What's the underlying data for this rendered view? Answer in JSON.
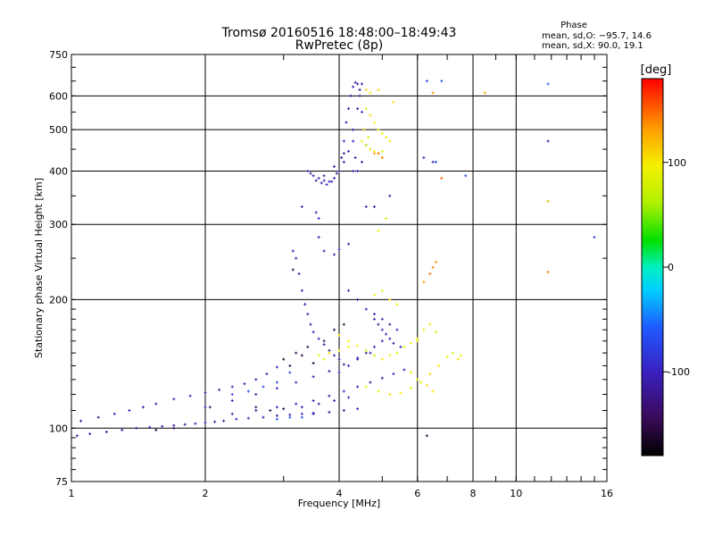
{
  "chart_data": {
    "type": "scatter",
    "title": "Tromsø 20160516 18:48:00–18:49:43",
    "subtitle": "RwPretec (8p)",
    "xlabel": "Frequency [MHz]",
    "ylabel": "Stationary phase Virtual Height [km]",
    "x_scale": "log",
    "y_scale": "log",
    "xlim": [
      1,
      16
    ],
    "ylim": [
      75,
      750
    ],
    "x_ticks": [
      1,
      2,
      4,
      6,
      8,
      10,
      16
    ],
    "x_tick_labels": [
      "1",
      "2",
      "4",
      "6",
      "8",
      "10",
      "16"
    ],
    "y_ticks": [
      75,
      100,
      200,
      300,
      400,
      500,
      600,
      750
    ],
    "y_tick_labels": [
      "75",
      "100",
      "200",
      "300",
      "400",
      "500",
      "600",
      "750"
    ],
    "grid": true,
    "stats": {
      "heading": "Phase",
      "line_o": "mean, sd,O: −95.7, 14.6",
      "line_x": "mean, sd,X: 90.0, 19.1"
    },
    "colorbar": {
      "label": "[deg]",
      "range": [
        -180,
        180
      ],
      "ticks": [
        100,
        0,
        -100
      ],
      "tick_labels": [
        "100",
        "0",
        "-100"
      ]
    },
    "series": [
      {
        "color_value_deg": -110,
        "points": [
          [
            1.03,
            96
          ],
          [
            1.1,
            97
          ],
          [
            1.2,
            98
          ],
          [
            1.3,
            99
          ],
          [
            1.4,
            100
          ],
          [
            1.5,
            100.5
          ],
          [
            1.6,
            101
          ],
          [
            1.7,
            101.5
          ],
          [
            1.8,
            102
          ],
          [
            1.9,
            102.5
          ],
          [
            2.0,
            103
          ],
          [
            2.1,
            103.5
          ],
          [
            2.2,
            104
          ],
          [
            2.35,
            105
          ],
          [
            2.5,
            105.5
          ],
          [
            2.7,
            106
          ],
          [
            2.9,
            107
          ],
          [
            3.1,
            107.5
          ],
          [
            3.3,
            108
          ],
          [
            3.5,
            108.5
          ],
          [
            1.05,
            104
          ],
          [
            1.15,
            106
          ],
          [
            1.25,
            108
          ],
          [
            1.35,
            110
          ],
          [
            1.45,
            112
          ],
          [
            1.55,
            114
          ],
          [
            1.7,
            117
          ],
          [
            1.85,
            119
          ],
          [
            2.0,
            121
          ],
          [
            2.15,
            123
          ],
          [
            2.3,
            125
          ],
          [
            2.45,
            127
          ],
          [
            2.6,
            130
          ],
          [
            2.75,
            134
          ],
          [
            2.9,
            139
          ],
          [
            2.0,
            112
          ],
          [
            2.3,
            116
          ],
          [
            2.6,
            120
          ],
          [
            2.9,
            124
          ],
          [
            3.2,
            128
          ],
          [
            3.5,
            132
          ],
          [
            3.8,
            136
          ],
          [
            4.1,
            141
          ],
          [
            4.4,
            146
          ],
          [
            4.7,
            150
          ],
          [
            2.3,
            108
          ],
          [
            2.6,
            110
          ],
          [
            2.9,
            112
          ],
          [
            3.2,
            114
          ],
          [
            3.5,
            116
          ],
          [
            3.8,
            119
          ],
          [
            4.1,
            122
          ],
          [
            4.4,
            125
          ],
          [
            4.7,
            128
          ],
          [
            5.0,
            131
          ],
          [
            5.3,
            134
          ],
          [
            5.6,
            137
          ],
          [
            3.3,
            112
          ],
          [
            3.6,
            114
          ],
          [
            3.9,
            116
          ],
          [
            4.2,
            118
          ],
          [
            3.5,
            108
          ],
          [
            3.8,
            109
          ],
          [
            4.1,
            110
          ],
          [
            4.4,
            111
          ],
          [
            3.15,
            260
          ],
          [
            3.2,
            250
          ],
          [
            3.25,
            230
          ],
          [
            3.3,
            210
          ],
          [
            3.35,
            195
          ],
          [
            3.4,
            185
          ],
          [
            3.45,
            175
          ],
          [
            3.5,
            168
          ],
          [
            3.6,
            162
          ],
          [
            3.7,
            157
          ],
          [
            3.8,
            152
          ],
          [
            3.9,
            148
          ],
          [
            4.0,
            145
          ],
          [
            3.5,
            390
          ],
          [
            3.6,
            385
          ],
          [
            3.7,
            380
          ],
          [
            3.8,
            378
          ],
          [
            3.9,
            385
          ],
          [
            4.0,
            400
          ],
          [
            4.05,
            430
          ],
          [
            4.1,
            470
          ],
          [
            4.15,
            520
          ],
          [
            4.2,
            560
          ],
          [
            4.25,
            600
          ],
          [
            4.3,
            630
          ],
          [
            4.35,
            645
          ],
          [
            4.4,
            640
          ],
          [
            4.45,
            600
          ],
          [
            4.5,
            550
          ],
          [
            4.55,
            500
          ],
          [
            4.6,
            460
          ],
          [
            4.5,
            420
          ],
          [
            4.4,
            400
          ],
          [
            3.4,
            400
          ],
          [
            3.45,
            395
          ],
          [
            3.55,
            380
          ],
          [
            3.65,
            375
          ],
          [
            3.75,
            372
          ],
          [
            3.85,
            378
          ],
          [
            3.95,
            395
          ],
          [
            4.1,
            420
          ],
          [
            4.2,
            445
          ],
          [
            4.3,
            500
          ],
          [
            4.4,
            560
          ],
          [
            4.45,
            620
          ],
          [
            4.5,
            640
          ],
          [
            3.7,
            390
          ],
          [
            3.9,
            410
          ],
          [
            4.1,
            440
          ],
          [
            4.3,
            470
          ],
          [
            4.35,
            430
          ],
          [
            4.8,
            180
          ],
          [
            4.9,
            175
          ],
          [
            5.0,
            170
          ],
          [
            5.1,
            166
          ],
          [
            5.2,
            162
          ],
          [
            5.3,
            158
          ],
          [
            5.5,
            155
          ],
          [
            4.0,
            135
          ],
          [
            4.2,
            140
          ],
          [
            4.4,
            145
          ],
          [
            4.6,
            150
          ],
          [
            4.8,
            155
          ],
          [
            5.0,
            160
          ],
          [
            4.2,
            210
          ],
          [
            4.4,
            200
          ],
          [
            4.6,
            190
          ],
          [
            4.8,
            185
          ],
          [
            5.0,
            180
          ],
          [
            5.2,
            175
          ],
          [
            5.4,
            170
          ],
          [
            3.3,
            330
          ],
          [
            3.6,
            280
          ],
          [
            3.7,
            260
          ],
          [
            3.9,
            255
          ],
          [
            4.0,
            262
          ],
          [
            4.2,
            270
          ],
          [
            3.55,
            320
          ],
          [
            3.6,
            310
          ],
          [
            4.3,
            400
          ],
          [
            4.6,
            330
          ],
          [
            5.2,
            350
          ],
          [
            4.8,
            330
          ],
          [
            6.2,
            430
          ],
          [
            6.5,
            420
          ],
          [
            11.8,
            470
          ],
          [
            11.8,
            340
          ]
        ]
      },
      {
        "color_value_deg": 95,
        "points": [
          [
            4.6,
            560
          ],
          [
            4.7,
            540
          ],
          [
            4.8,
            520
          ],
          [
            4.9,
            500
          ],
          [
            5.0,
            490
          ],
          [
            5.1,
            480
          ],
          [
            5.2,
            470
          ],
          [
            4.5,
            470
          ],
          [
            4.6,
            460
          ],
          [
            4.7,
            450
          ],
          [
            4.8,
            445
          ],
          [
            4.9,
            440
          ],
          [
            5.0,
            445
          ],
          [
            4.6,
            620
          ],
          [
            4.7,
            610
          ],
          [
            4.55,
            500
          ],
          [
            4.65,
            480
          ],
          [
            4.0,
            165
          ],
          [
            4.2,
            160
          ],
          [
            4.4,
            156
          ],
          [
            4.6,
            152
          ],
          [
            4.8,
            148
          ],
          [
            5.0,
            145
          ],
          [
            5.2,
            148
          ],
          [
            5.4,
            150
          ],
          [
            5.6,
            155
          ],
          [
            5.8,
            158
          ],
          [
            6.0,
            162
          ],
          [
            4.6,
            125
          ],
          [
            4.9,
            122
          ],
          [
            5.2,
            120
          ],
          [
            5.5,
            121
          ],
          [
            5.8,
            124
          ],
          [
            6.1,
            128
          ],
          [
            6.4,
            134
          ],
          [
            6.7,
            140
          ],
          [
            7.0,
            147
          ],
          [
            3.6,
            148
          ],
          [
            3.8,
            150
          ],
          [
            4.0,
            152
          ],
          [
            4.2,
            155
          ],
          [
            3.7,
            145
          ],
          [
            6.0,
            160
          ],
          [
            6.2,
            170
          ],
          [
            6.4,
            175
          ],
          [
            6.6,
            168
          ],
          [
            7.2,
            150
          ],
          [
            7.4,
            145
          ],
          [
            7.5,
            148
          ],
          [
            4.8,
            205
          ],
          [
            5.0,
            210
          ],
          [
            5.2,
            200
          ],
          [
            5.4,
            195
          ],
          [
            5.8,
            135
          ],
          [
            6.0,
            130
          ],
          [
            6.3,
            126
          ],
          [
            6.5,
            122
          ],
          [
            4.9,
            290
          ],
          [
            5.1,
            310
          ],
          [
            4.9,
            620
          ],
          [
            5.3,
            580
          ],
          [
            11.8,
            340
          ]
        ]
      },
      {
        "color_value_deg": 140,
        "points": [
          [
            6.2,
            220
          ],
          [
            6.4,
            230
          ],
          [
            6.5,
            238
          ],
          [
            6.6,
            245
          ],
          [
            4.8,
            440
          ],
          [
            4.9,
            440
          ],
          [
            5.0,
            430
          ],
          [
            6.5,
            610
          ],
          [
            8.5,
            610
          ],
          [
            6.8,
            385
          ],
          [
            11.8,
            232
          ]
        ]
      },
      {
        "color_value_deg": -150,
        "points": [
          [
            3.0,
            145
          ],
          [
            3.2,
            150
          ],
          [
            3.4,
            155
          ],
          [
            3.1,
            140
          ],
          [
            3.3,
            148
          ],
          [
            2.6,
            112
          ],
          [
            2.8,
            110
          ],
          [
            3.0,
            111
          ],
          [
            3.5,
            142
          ],
          [
            3.7,
            160
          ],
          [
            3.9,
            170
          ],
          [
            4.1,
            175
          ],
          [
            1.55,
            99
          ],
          [
            1.7,
            100
          ],
          [
            2.05,
            112
          ],
          [
            3.15,
            235
          ],
          [
            6.3,
            96
          ]
        ]
      },
      {
        "color_value_deg": -70,
        "points": [
          [
            2.3,
            120
          ],
          [
            2.5,
            122
          ],
          [
            2.7,
            125
          ],
          [
            2.9,
            128
          ],
          [
            3.1,
            135
          ],
          [
            2.9,
            105
          ],
          [
            3.1,
            106
          ],
          [
            3.3,
            106
          ],
          [
            6.3,
            650
          ],
          [
            6.8,
            650
          ],
          [
            6.6,
            420
          ],
          [
            7.7,
            390
          ],
          [
            15.0,
            280
          ],
          [
            11.8,
            640
          ]
        ]
      }
    ]
  }
}
